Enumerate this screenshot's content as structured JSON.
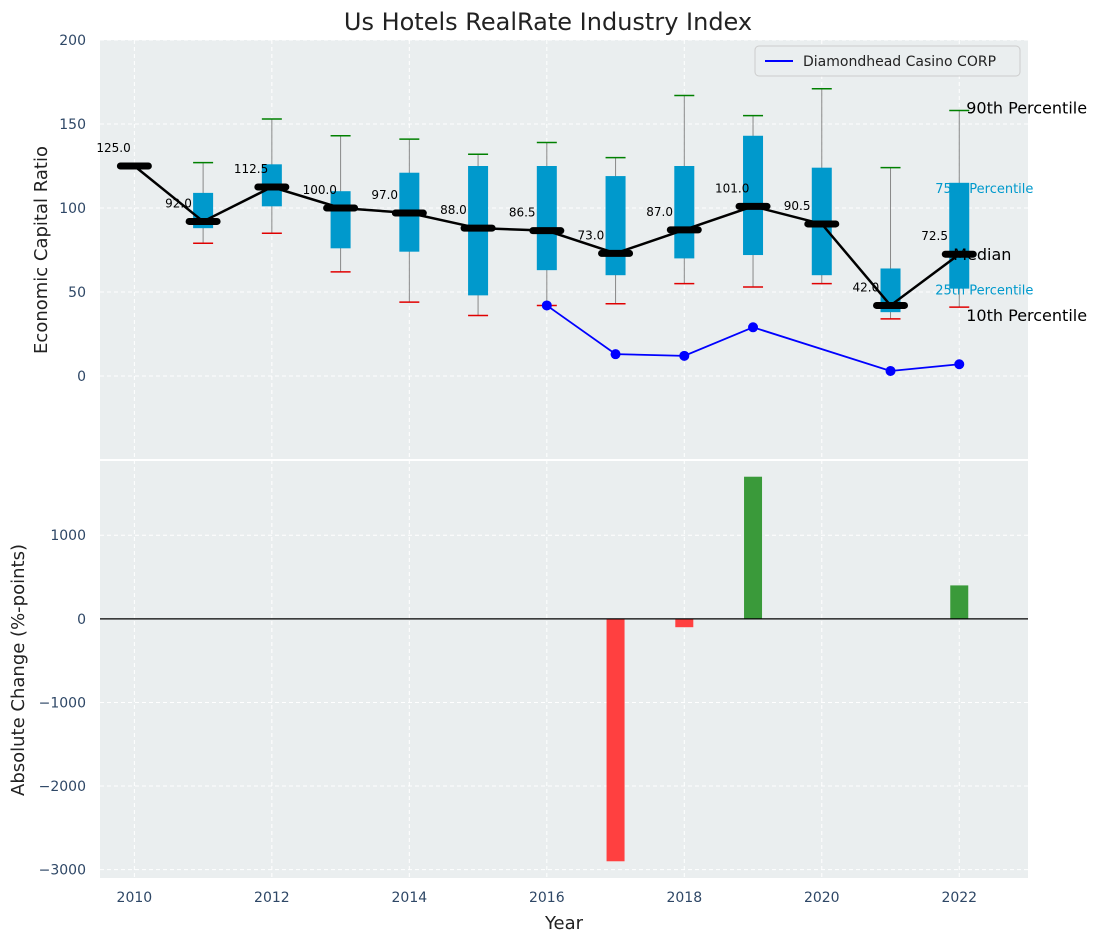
{
  "colors": {
    "panel_bg": "#eaeeef",
    "grid": "#ffffff",
    "box_fill": "#0099cc",
    "whisker": "#888888",
    "cap_high": "#008000",
    "cap_low": "#e00000",
    "median": "#000000",
    "company": "#0000ff",
    "bar_pos": "#3a9a3a",
    "bar_neg": "#ff4040",
    "tick_text": "#2e4766",
    "label_text": "#222222"
  },
  "chart_data": [
    {
      "type": "box",
      "title": "Us Hotels RealRate Industry Index",
      "xlabel": "",
      "ylabel": "Economic Capital Ratio",
      "ylim": [
        -50,
        200
      ],
      "xlim": [
        2009.5,
        2023
      ],
      "yticks": [
        0,
        50,
        100,
        150,
        200
      ],
      "ytick_labels": [
        "0",
        "50",
        "100",
        "150",
        "200"
      ],
      "grid": true,
      "legend": {
        "position": "top-right",
        "entries": [
          "Diamondhead Casino CORP"
        ]
      },
      "boxes": [
        {
          "year": 2010,
          "p10": 125,
          "p25": 125,
          "median": 125.0,
          "p75": 125,
          "p90": 125,
          "label": "125.0"
        },
        {
          "year": 2011,
          "p10": 79,
          "p25": 88,
          "median": 92.0,
          "p75": 109,
          "p90": 127,
          "label": "92.0"
        },
        {
          "year": 2012,
          "p10": 85,
          "p25": 101,
          "median": 112.5,
          "p75": 126,
          "p90": 153,
          "label": "112.5"
        },
        {
          "year": 2013,
          "p10": 62,
          "p25": 76,
          "median": 100.0,
          "p75": 110,
          "p90": 143,
          "label": "100.0"
        },
        {
          "year": 2014,
          "p10": 44,
          "p25": 74,
          "median": 97.0,
          "p75": 121,
          "p90": 141,
          "label": "97.0"
        },
        {
          "year": 2015,
          "p10": 36,
          "p25": 48,
          "median": 88.0,
          "p75": 125,
          "p90": 132,
          "label": "88.0"
        },
        {
          "year": 2016,
          "p10": 42,
          "p25": 63,
          "median": 86.5,
          "p75": 125,
          "p90": 139,
          "label": "86.5"
        },
        {
          "year": 2017,
          "p10": 43,
          "p25": 60,
          "median": 73.0,
          "p75": 119,
          "p90": 130,
          "label": "73.0"
        },
        {
          "year": 2018,
          "p10": 55,
          "p25": 70,
          "median": 87.0,
          "p75": 125,
          "p90": 167,
          "label": "87.0"
        },
        {
          "year": 2019,
          "p10": 53,
          "p25": 72,
          "median": 101.0,
          "p75": 143,
          "p90": 155,
          "label": "101.0"
        },
        {
          "year": 2020,
          "p10": 55,
          "p25": 60,
          "median": 90.5,
          "p75": 124,
          "p90": 171,
          "label": "90.5"
        },
        {
          "year": 2021,
          "p10": 34,
          "p25": 38,
          "median": 42.0,
          "p75": 64,
          "p90": 124,
          "label": "42.0"
        },
        {
          "year": 2022,
          "p10": 41,
          "p25": 52,
          "median": 72.5,
          "p75": 115,
          "p90": 158,
          "label": "72.5"
        }
      ],
      "series": [
        {
          "name": "Diamondhead Casino CORP",
          "x": [
            2016,
            2017,
            2018,
            2019,
            2021,
            2022
          ],
          "values": [
            42,
            13,
            12,
            29,
            3,
            7
          ]
        }
      ],
      "percentile_labels": {
        "p90": "90th Percentile",
        "p75": "75th Percentile",
        "median": "Median",
        "p25": "25th Percentile",
        "p10": "10th Percentile"
      }
    },
    {
      "type": "bar",
      "title": "",
      "xlabel": "Year",
      "ylabel": "Absolute Change (%-points)",
      "ylim": [
        -3100,
        1900
      ],
      "xlim": [
        2009.5,
        2023
      ],
      "yticks": [
        -3000,
        -2000,
        -1000,
        0,
        1000
      ],
      "ytick_labels": [
        "−3000",
        "−2000",
        "−1000",
        "0",
        "1000"
      ],
      "xticks": [
        2010,
        2012,
        2014,
        2016,
        2018,
        2020,
        2022
      ],
      "xtick_labels": [
        "2010",
        "2012",
        "2014",
        "2016",
        "2018",
        "2020",
        "2022"
      ],
      "grid": true,
      "x": [
        2017,
        2018,
        2019,
        2022
      ],
      "values": [
        -2900,
        -100,
        1700,
        400
      ]
    }
  ]
}
